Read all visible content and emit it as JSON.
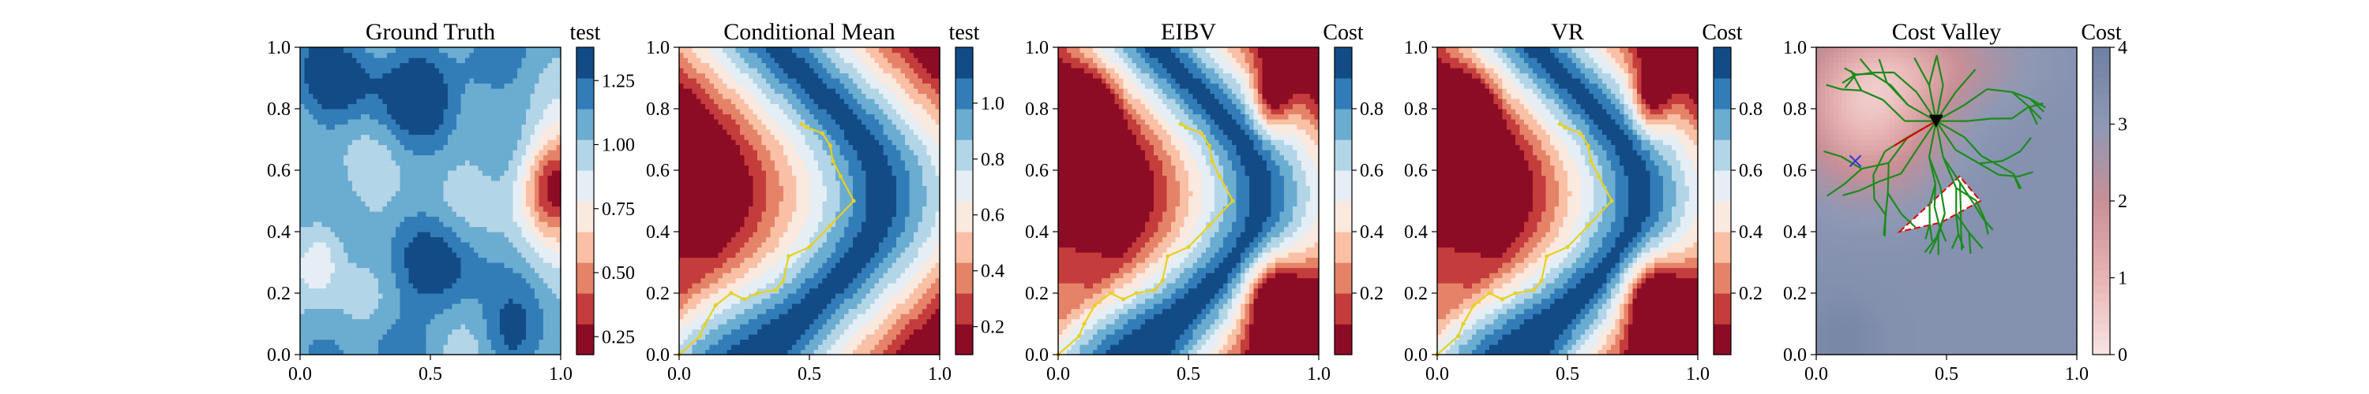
{
  "chart_data": [
    {
      "type": "heatmap",
      "title": "Ground Truth",
      "xlim": [
        0,
        1
      ],
      "ylim": [
        0,
        1
      ],
      "x_ticks": [
        "0.0",
        "0.5",
        "1.0"
      ],
      "y_ticks": [
        "0.0",
        "0.2",
        "0.4",
        "0.6",
        "0.8",
        "1.0"
      ],
      "colorbar": {
        "label": "test",
        "range": [
          0.18,
          1.38
        ],
        "ticks": [
          "0.25",
          "0.50",
          "0.75",
          "1.00",
          "1.25"
        ],
        "tick_values": [
          0.25,
          0.5,
          0.75,
          1.0,
          1.25
        ]
      },
      "field": "ground_truth",
      "path": []
    },
    {
      "type": "heatmap",
      "title": "Conditional Mean",
      "xlim": [
        0,
        1
      ],
      "ylim": [
        0,
        1
      ],
      "x_ticks": [
        "0.0",
        "0.5",
        "1.0"
      ],
      "y_ticks": [
        "0.0",
        "0.2",
        "0.4",
        "0.6",
        "0.8",
        "1.0"
      ],
      "colorbar": {
        "label": "test",
        "range": [
          0.1,
          1.2
        ],
        "ticks": [
          "0.2",
          "0.4",
          "0.6",
          "0.8",
          "1.0"
        ],
        "tick_values": [
          0.2,
          0.4,
          0.6,
          0.8,
          1.0
        ]
      },
      "field": "s_curve",
      "path": [
        [
          0.0,
          0.0
        ],
        [
          0.08,
          0.06
        ],
        [
          0.1,
          0.1
        ],
        [
          0.14,
          0.16
        ],
        [
          0.2,
          0.2
        ],
        [
          0.25,
          0.18
        ],
        [
          0.3,
          0.2
        ],
        [
          0.37,
          0.21
        ],
        [
          0.4,
          0.24
        ],
        [
          0.42,
          0.32
        ],
        [
          0.5,
          0.35
        ],
        [
          0.58,
          0.42
        ],
        [
          0.67,
          0.5
        ],
        [
          0.62,
          0.58
        ],
        [
          0.59,
          0.63
        ],
        [
          0.58,
          0.68
        ],
        [
          0.55,
          0.72
        ],
        [
          0.49,
          0.74
        ],
        [
          0.47,
          0.75
        ]
      ]
    },
    {
      "type": "heatmap",
      "title": "EIBV",
      "xlim": [
        0,
        1
      ],
      "ylim": [
        0,
        1
      ],
      "x_ticks": [
        "0.0",
        "0.5",
        "1.0"
      ],
      "y_ticks": [
        "0.0",
        "0.2",
        "0.4",
        "0.6",
        "0.8",
        "1.0"
      ],
      "colorbar": {
        "label": "Cost",
        "range": [
          0.0,
          1.0
        ],
        "ticks": [
          "0.2",
          "0.4",
          "0.6",
          "0.8"
        ],
        "tick_values": [
          0.2,
          0.4,
          0.6,
          0.8
        ]
      },
      "field": "s_curve_blobs",
      "path": [
        [
          0.0,
          0.0
        ],
        [
          0.08,
          0.06
        ],
        [
          0.1,
          0.1
        ],
        [
          0.14,
          0.16
        ],
        [
          0.2,
          0.2
        ],
        [
          0.25,
          0.18
        ],
        [
          0.3,
          0.2
        ],
        [
          0.37,
          0.21
        ],
        [
          0.4,
          0.24
        ],
        [
          0.42,
          0.32
        ],
        [
          0.5,
          0.35
        ],
        [
          0.58,
          0.42
        ],
        [
          0.67,
          0.5
        ],
        [
          0.62,
          0.58
        ],
        [
          0.59,
          0.63
        ],
        [
          0.58,
          0.68
        ],
        [
          0.55,
          0.72
        ],
        [
          0.49,
          0.74
        ],
        [
          0.47,
          0.75
        ]
      ]
    },
    {
      "type": "heatmap",
      "title": "VR",
      "xlim": [
        0,
        1
      ],
      "ylim": [
        0,
        1
      ],
      "x_ticks": [
        "0.0",
        "0.5",
        "1.0"
      ],
      "y_ticks": [
        "0.0",
        "0.2",
        "0.4",
        "0.6",
        "0.8",
        "1.0"
      ],
      "colorbar": {
        "label": "Cost",
        "range": [
          0.0,
          1.0
        ],
        "ticks": [
          "0.2",
          "0.4",
          "0.6",
          "0.8"
        ],
        "tick_values": [
          0.2,
          0.4,
          0.6,
          0.8
        ]
      },
      "field": "s_curve_blobs",
      "path": [
        [
          0.0,
          0.0
        ],
        [
          0.08,
          0.06
        ],
        [
          0.1,
          0.1
        ],
        [
          0.14,
          0.16
        ],
        [
          0.2,
          0.2
        ],
        [
          0.25,
          0.18
        ],
        [
          0.3,
          0.2
        ],
        [
          0.37,
          0.21
        ],
        [
          0.4,
          0.24
        ],
        [
          0.42,
          0.32
        ],
        [
          0.5,
          0.35
        ],
        [
          0.58,
          0.42
        ],
        [
          0.67,
          0.5
        ],
        [
          0.62,
          0.58
        ],
        [
          0.59,
          0.63
        ],
        [
          0.58,
          0.68
        ],
        [
          0.55,
          0.72
        ],
        [
          0.49,
          0.74
        ],
        [
          0.47,
          0.75
        ]
      ]
    },
    {
      "type": "heatmap",
      "title": "Cost Valley",
      "xlim": [
        0,
        1
      ],
      "ylim": [
        0,
        1
      ],
      "x_ticks": [
        "0.0",
        "0.5",
        "1.0"
      ],
      "y_ticks": [
        "0.0",
        "0.2",
        "0.4",
        "0.6",
        "0.8",
        "1.0"
      ],
      "colorbar": {
        "label": "Cost",
        "range": [
          0,
          4
        ],
        "ticks": [
          "0",
          "1",
          "2",
          "3",
          "4"
        ],
        "tick_values": [
          0,
          1,
          2,
          3,
          4
        ]
      },
      "field": "cost_valley",
      "path": [],
      "markers": {
        "current_location": [
          0.46,
          0.76
        ],
        "cross": [
          0.15,
          0.63
        ],
        "next_segment": [
          [
            0.46,
            0.76
          ],
          [
            0.3,
            0.68
          ]
        ],
        "obstacle_polygon": [
          [
            0.32,
            0.4
          ],
          [
            0.55,
            0.58
          ],
          [
            0.63,
            0.5
          ],
          [
            0.48,
            0.43
          ]
        ]
      }
    }
  ],
  "colors": {
    "rdbu": [
      "#67001f",
      "#b2182b",
      "#d6604d",
      "#f4a582",
      "#fddbc7",
      "#f7f7f7",
      "#d1e5f0",
      "#92c5de",
      "#4393c3",
      "#2166ac",
      "#053061"
    ],
    "path": "#e8d020",
    "tree": "#1a8c1a",
    "cross": "#3333dd",
    "marker": "#000000",
    "segment": "#dd0000",
    "polygon": "#dd0000"
  }
}
